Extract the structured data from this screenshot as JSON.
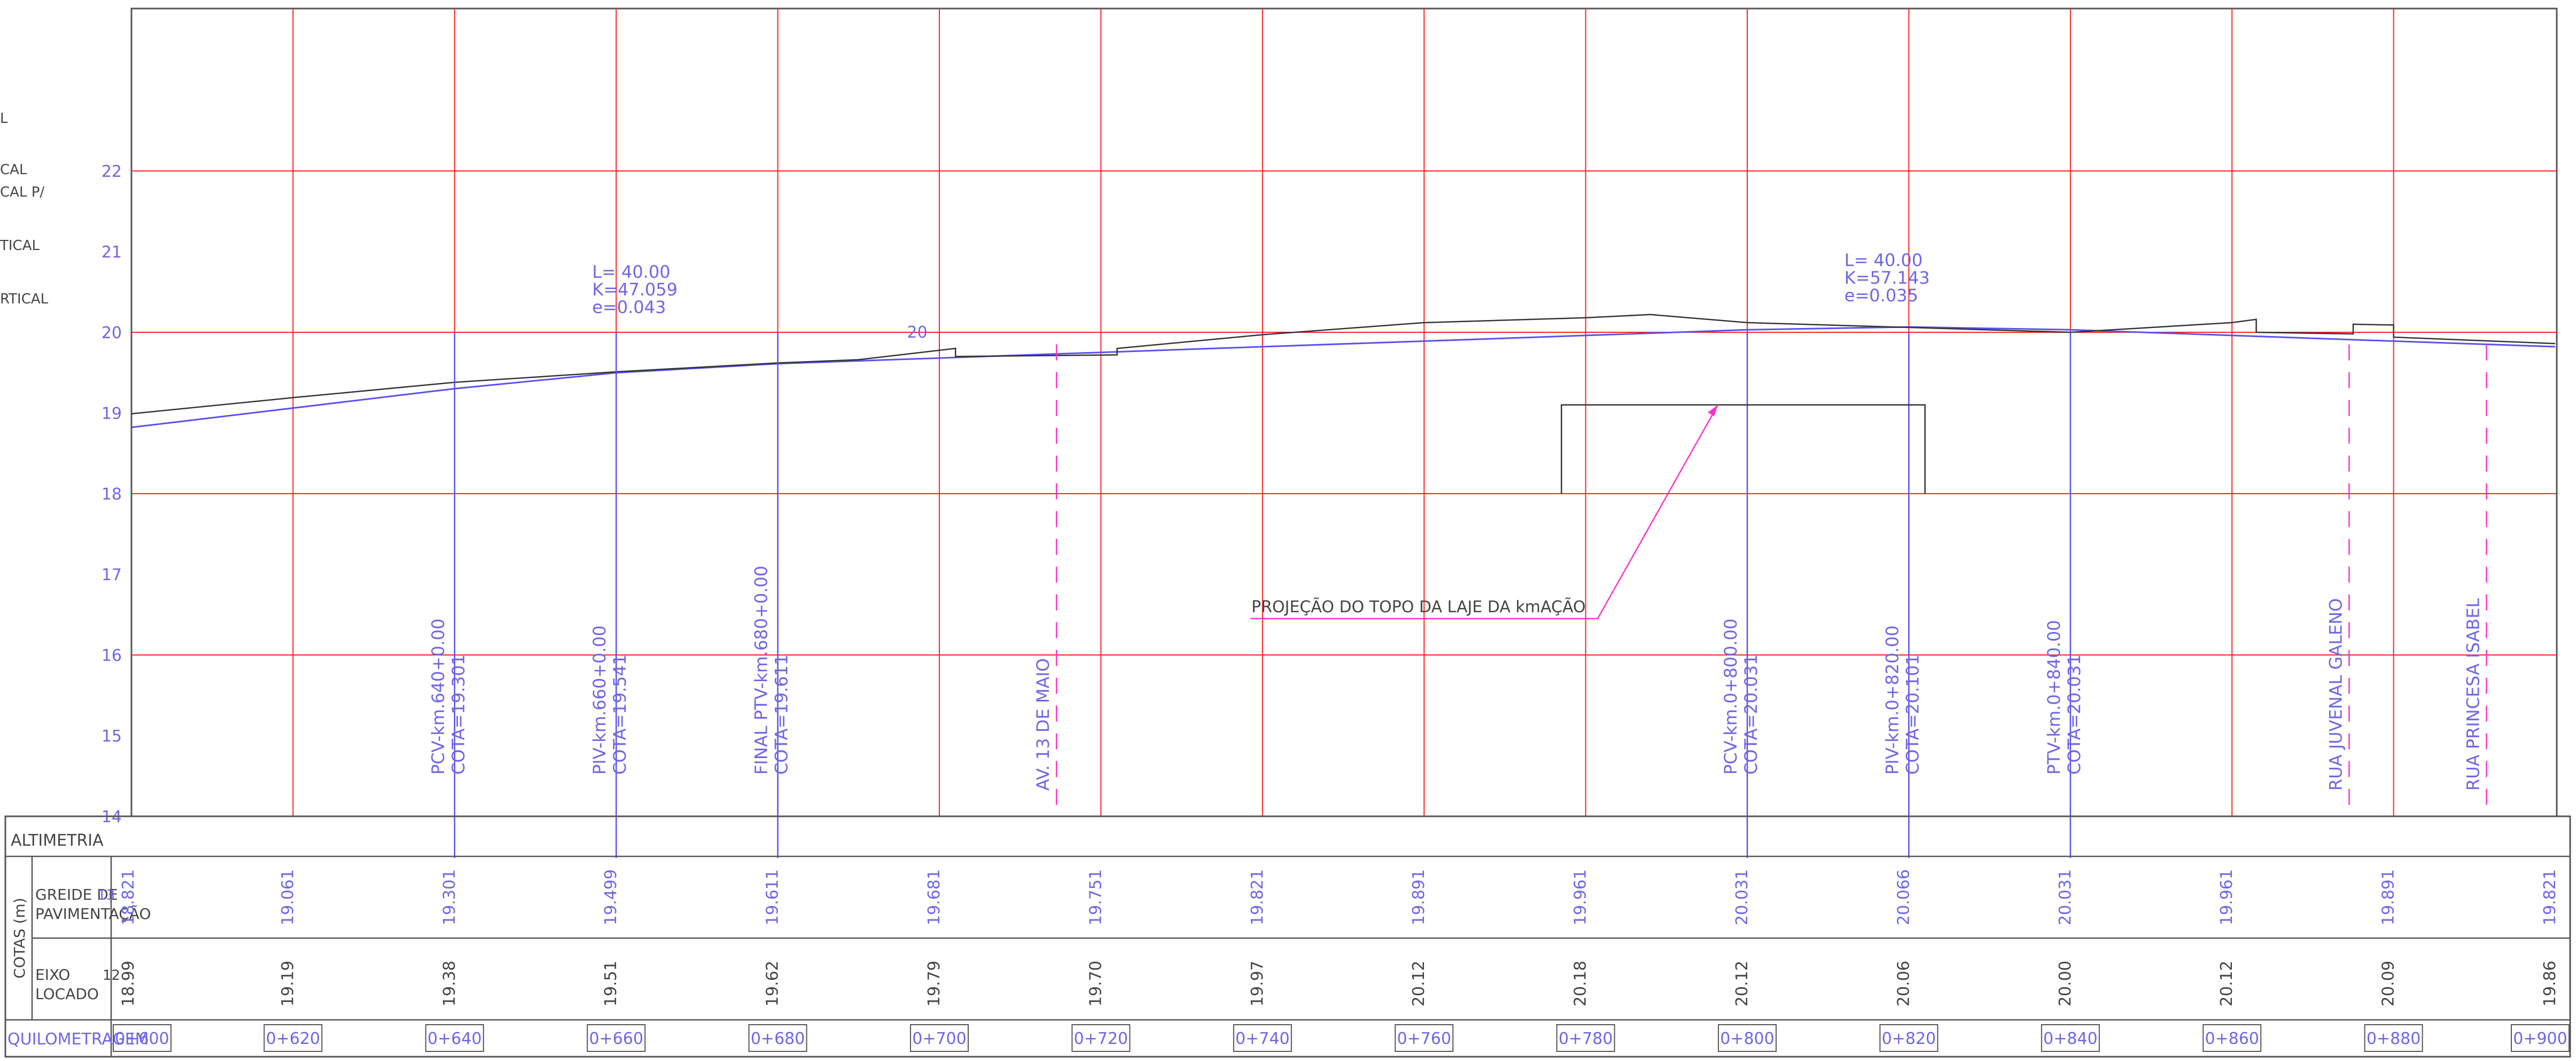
{
  "colors": {
    "grid": "#ff2020",
    "design": "#5a50f0",
    "terrain": "#333333",
    "frame": "#555555",
    "annotation": "#ff30d0",
    "label": "#6e66e6",
    "text": "#444444"
  },
  "legend_fragments": [
    "L",
    "CAL",
    "CAL P/",
    "TICAL",
    "RTICAL"
  ],
  "elevation_axis": [
    {
      "value": 14,
      "label": "14"
    },
    {
      "value": 15,
      "label": "15"
    },
    {
      "value": 16,
      "label": "16"
    },
    {
      "value": 17,
      "label": "17"
    },
    {
      "value": 18,
      "label": "18"
    },
    {
      "value": 19,
      "label": "19"
    },
    {
      "value": 20,
      "label": "20"
    },
    {
      "value": 21,
      "label": "21"
    },
    {
      "value": 22,
      "label": "22"
    }
  ],
  "stations": [
    600,
    620,
    640,
    660,
    680,
    700,
    720,
    740,
    760,
    780,
    800,
    820,
    840,
    860,
    880,
    900
  ],
  "curves": [
    {
      "l": "L= 40.00",
      "k": "K=47.059",
      "e": "e=0.043",
      "station": 660
    },
    {
      "l": "L= 40.00",
      "k": "K=57.143",
      "e": "e=0.035",
      "station": 815
    }
  ],
  "marker_20": {
    "label": "20",
    "station": 696,
    "elev": 20
  },
  "vertical_markers": [
    {
      "name": "pcv-640",
      "station": 640,
      "lines": [
        "PCV-km.640+0.00",
        "COTA=19.301"
      ]
    },
    {
      "name": "piv-660",
      "station": 660,
      "lines": [
        "PIV-km.660+0.00",
        "COTA=19.541"
      ]
    },
    {
      "name": "ptv-680",
      "station": 680,
      "lines": [
        "FINAL PTV-km.680+0.00",
        "COTA=19.611"
      ]
    },
    {
      "name": "pcv-800",
      "station": 800,
      "lines": [
        "PCV-km.0+800.00",
        "COTA=20.031"
      ]
    },
    {
      "name": "piv-820",
      "station": 820,
      "lines": [
        "PIV-km.0+820.00",
        "COTA=20.101"
      ]
    },
    {
      "name": "ptv-840",
      "station": 840,
      "lines": [
        "PTV-km.0+840.00",
        "COTA=20.031"
      ]
    }
  ],
  "street_markers": [
    {
      "name": "av-13-de-maio",
      "station": 714.5,
      "label": "AV. 13 DE MAIO"
    },
    {
      "name": "rua-juvenal-galeno",
      "station": 874.5,
      "label": "RUA JUVENAL GALENO"
    },
    {
      "name": "rua-princesa-isabel",
      "station": 891.5,
      "label": "RUA PRINCESA ISABEL"
    }
  ],
  "projection_note": "PROJEÇÃO DO TOPO DA LAJE DA kmAÇÃO",
  "table": {
    "title": "ALTIMETRIA",
    "cotas_label": "COTAS (m)",
    "greide_label": [
      "GREIDE DE",
      "PAVIMENTAÇÃO"
    ],
    "greide_overlap": "13",
    "eixo_label": [
      "EIXO",
      "LOCADO"
    ],
    "eixo_overlap": "12",
    "km_label": "QUILOMETRAGEM",
    "greide_values": [
      "18.821",
      "19.061",
      "19.301",
      "19.499",
      "19.611",
      "19.681",
      "19.751",
      "19.821",
      "19.891",
      "19.961",
      "20.031",
      "20.066",
      "20.031",
      "19.961",
      "19.891",
      "19.821"
    ],
    "eixo_values": [
      "18.99",
      "19.19",
      "19.38",
      "19.51",
      "19.62",
      "19.79",
      "19.70",
      "19.97",
      "20.12",
      "20.18",
      "20.12",
      "20.06",
      "20.00",
      "20.12",
      "20.09",
      "19.86"
    ],
    "km_values": [
      "0+600",
      "0+620",
      "0+640",
      "0+660",
      "0+680",
      "0+700",
      "0+720",
      "0+740",
      "0+760",
      "0+780",
      "0+800",
      "0+820",
      "0+840",
      "0+860",
      "0+880",
      "0+900"
    ]
  }
}
